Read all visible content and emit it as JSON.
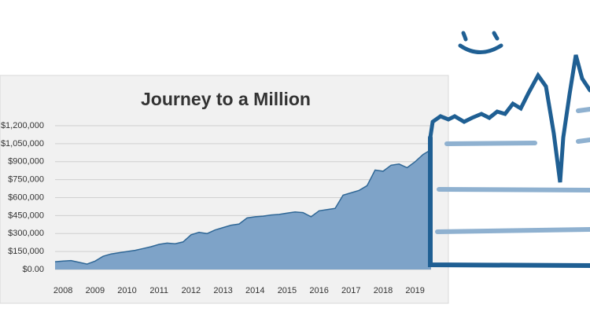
{
  "chart_data": {
    "type": "area",
    "title": "Journey to a Million",
    "categories": [
      null,
      "2008",
      null,
      null,
      null,
      "2009",
      null,
      null,
      null,
      "2010",
      null,
      null,
      null,
      "2011",
      null,
      null,
      null,
      "2012",
      null,
      null,
      null,
      "2013",
      null,
      null,
      null,
      "2014",
      null,
      null,
      null,
      "2015",
      null,
      null,
      null,
      "2016",
      null,
      null,
      null,
      "2017",
      null,
      null,
      null,
      "2018",
      null,
      null,
      null,
      "2019",
      null,
      null
    ],
    "values": [
      65000,
      70000,
      75000,
      60000,
      45000,
      70000,
      110000,
      130000,
      140000,
      150000,
      160000,
      175000,
      190000,
      210000,
      220000,
      215000,
      230000,
      290000,
      310000,
      300000,
      330000,
      350000,
      370000,
      380000,
      430000,
      440000,
      445000,
      455000,
      460000,
      470000,
      480000,
      475000,
      440000,
      490000,
      500000,
      510000,
      620000,
      640000,
      660000,
      700000,
      830000,
      820000,
      870000,
      880000,
      850000,
      900000,
      960000,
      1000000
    ],
    "color": "#7ea3c8",
    "line_color": "#2f6796",
    "ylim": [
      0,
      1200000
    ],
    "yticks": [
      {
        "value": 0,
        "label": "$0.00"
      },
      {
        "value": 150000,
        "label": "$150,000"
      },
      {
        "value": 300000,
        "label": "$300,000"
      },
      {
        "value": 450000,
        "label": "$450,000"
      },
      {
        "value": 600000,
        "label": "$600,000"
      },
      {
        "value": 750000,
        "label": "$750,000"
      },
      {
        "value": 900000,
        "label": "$900,000"
      },
      {
        "value": 1050000,
        "label": "$1,050,000"
      },
      {
        "value": 1200000,
        "label": "$1,200,000"
      }
    ],
    "grid": true
  }
}
